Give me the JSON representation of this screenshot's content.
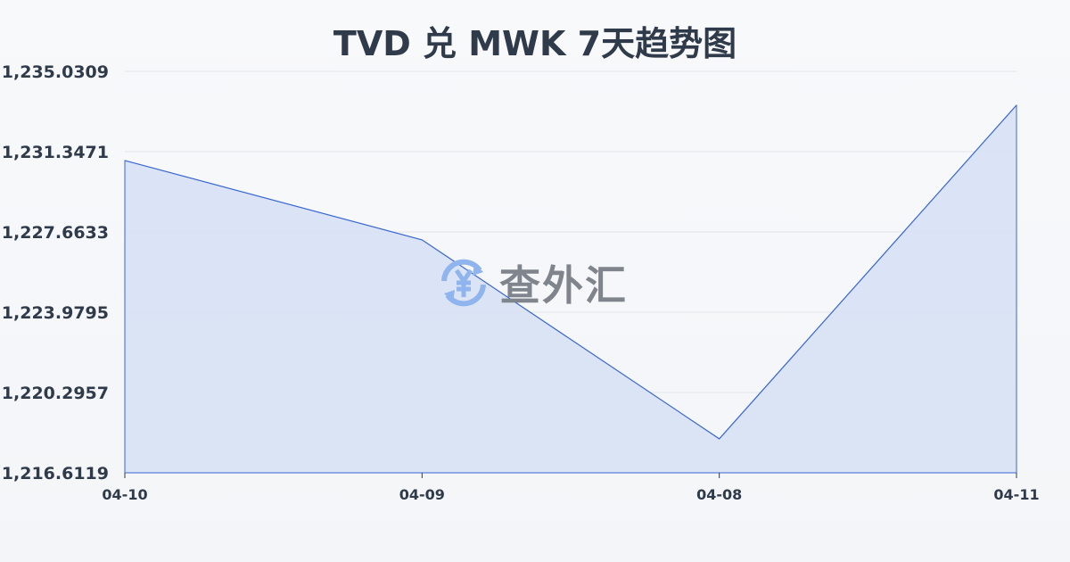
{
  "chart_data": {
    "type": "area",
    "title": "TVD 兑 MWK 7天趋势图",
    "categories": [
      "04-10",
      "04-09",
      "04-08",
      "04-11"
    ],
    "values": [
      1230.94,
      1227.3,
      1218.17,
      1233.48
    ],
    "y_ticks": [
      "1,216.6119",
      "1,220.2957",
      "1,223.9795",
      "1,227.6633",
      "1,231.3471",
      "1,235.0309"
    ],
    "ylim": [
      1216.6119,
      1235.0309
    ],
    "grid": true,
    "line_color": "#3866d4",
    "fill_color": "#d6e0f5"
  },
  "watermark": {
    "text": "查外汇",
    "icon": "yen-exchange-icon"
  }
}
